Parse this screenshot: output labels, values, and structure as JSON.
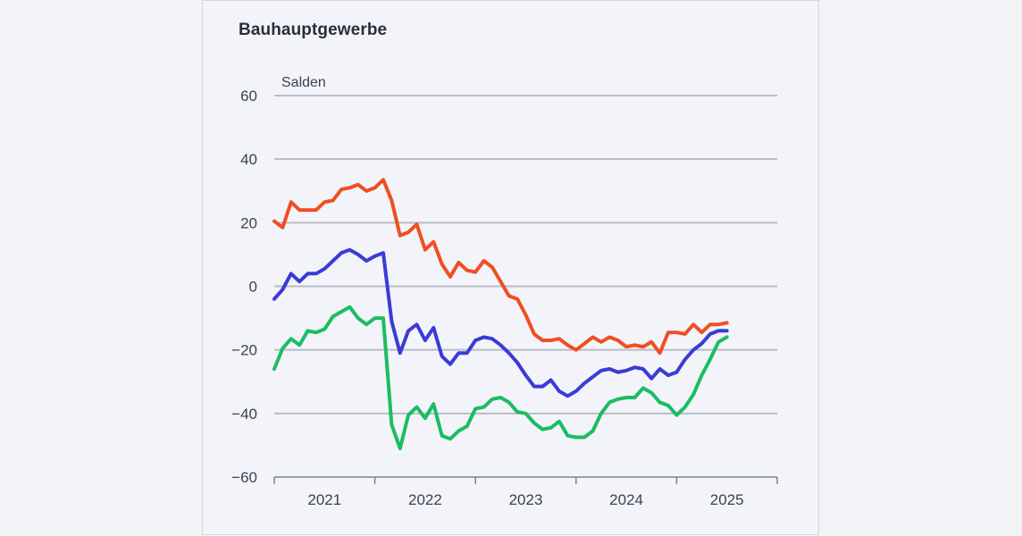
{
  "chart_data": {
    "type": "line",
    "title": "Bauhauptgewerbe",
    "ylabel": "Salden",
    "xlabel": "",
    "ylim": [
      -60,
      60
    ],
    "yticks": [
      -60,
      -40,
      -20,
      0,
      20,
      40,
      60
    ],
    "ytick_labels": [
      "−60",
      "−40",
      "−20",
      "0",
      "20",
      "40",
      "60"
    ],
    "xlim": [
      2020.5,
      2025.5
    ],
    "xticks": [
      2021,
      2022,
      2023,
      2024,
      2025
    ],
    "xtick_labels": [
      "2021",
      "2022",
      "2023",
      "2024",
      "2025"
    ],
    "grid": "horizontal",
    "legend": "none",
    "x_start": 2020.5,
    "x_step_months": 1,
    "series": [
      {
        "color": "#f04e23",
        "values": [
          20.5,
          18.5,
          26.5,
          24,
          24,
          24,
          26.5,
          27,
          30.5,
          31,
          32,
          30,
          31,
          33.5,
          27,
          16,
          17,
          19.5,
          11.5,
          14,
          7,
          3,
          7.5,
          5,
          4.5,
          8,
          6,
          1.5,
          -3,
          -4,
          -9,
          -15,
          -17,
          -17,
          -16.5,
          -18.5,
          -20,
          -18,
          -16,
          -17.5,
          -16,
          -17,
          -19,
          -18.5,
          -19,
          -17.5,
          -21,
          -14.5,
          -14.5,
          -15,
          -12,
          -14.5,
          -12,
          -12,
          -11.5
        ]
      },
      {
        "color": "#3a3bd6",
        "values": [
          -4,
          -1,
          4,
          1.5,
          4,
          4,
          5.5,
          8,
          10.5,
          11.5,
          10,
          8,
          9.5,
          10.5,
          -11,
          -21,
          -14,
          -12,
          -17,
          -13,
          -22,
          -24.5,
          -21,
          -21,
          -17,
          -16,
          -16.5,
          -18.5,
          -21,
          -24,
          -28,
          -31.5,
          -31.5,
          -29.5,
          -33,
          -34.5,
          -33,
          -30.5,
          -28.5,
          -26.5,
          -26,
          -27,
          -26.5,
          -25.5,
          -26,
          -29,
          -26,
          -28,
          -27,
          -23,
          -20,
          -18,
          -15,
          -14,
          -14
        ]
      },
      {
        "color": "#1bbd62",
        "values": [
          -26,
          -19.5,
          -16.5,
          -18.5,
          -14,
          -14.5,
          -13.5,
          -9.5,
          -8,
          -6.5,
          -10,
          -12,
          -10,
          -10,
          -43.5,
          -51,
          -40.5,
          -38,
          -41.5,
          -37,
          -47,
          -48,
          -45.5,
          -44,
          -38.5,
          -38,
          -35.5,
          -35,
          -36.5,
          -39.5,
          -40,
          -43,
          -45,
          -44.5,
          -42.5,
          -47,
          -47.5,
          -47.5,
          -45.5,
          -40,
          -36.5,
          -35.5,
          -35,
          -35,
          -32,
          -33.5,
          -36.5,
          -37.5,
          -40.5,
          -38,
          -34,
          -28,
          -23,
          -17.5,
          -16
        ]
      }
    ]
  }
}
